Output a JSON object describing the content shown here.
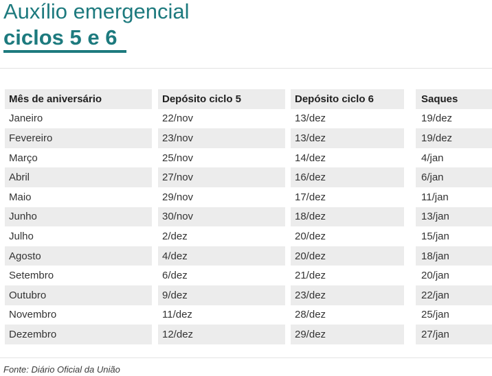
{
  "colors": {
    "accent_teal": "#1d7a7e",
    "header_row_bg": "#ececec",
    "stripe_row_bg": "#ececec",
    "divider": "#e2e2e2",
    "header_text": "#1f1f1f",
    "body_text": "#333333"
  },
  "chart_data": {
    "type": "table",
    "title": "Auxílio emergencial",
    "subtitle": "ciclos 5 e 6",
    "columns": [
      "Mês de aniversário",
      "Depósito ciclo 5",
      "Depósito ciclo 6",
      "Saques"
    ],
    "rows": [
      [
        "Janeiro",
        "22/nov",
        "13/dez",
        "19/dez"
      ],
      [
        "Fevereiro",
        "23/nov",
        "13/dez",
        "19/dez"
      ],
      [
        "Março",
        "25/nov",
        "14/dez",
        "4/jan"
      ],
      [
        "Abril",
        "27/nov",
        "16/dez",
        "6/jan"
      ],
      [
        "Maio",
        "29/nov",
        "17/dez",
        "11/jan"
      ],
      [
        "Junho",
        "30/nov",
        "18/dez",
        "13/jan"
      ],
      [
        "Julho",
        "2/dez",
        "20/dez",
        "15/jan"
      ],
      [
        "Agosto",
        "4/dez",
        "20/dez",
        "18/jan"
      ],
      [
        "Setembro",
        "6/dez",
        "21/dez",
        "20/jan"
      ],
      [
        "Outubro",
        "9/dez",
        "23/dez",
        "22/jan"
      ],
      [
        "Novembro",
        "11/dez",
        "28/dez",
        "25/jan"
      ],
      [
        "Dezembro",
        "12/dez",
        "29/dez",
        "27/jan"
      ]
    ],
    "source": "Fonte: Diário Oficial da União",
    "layout": {
      "striped": true,
      "stripe_pattern": "even-rows-gray",
      "grid": "off",
      "legend": "none"
    }
  }
}
